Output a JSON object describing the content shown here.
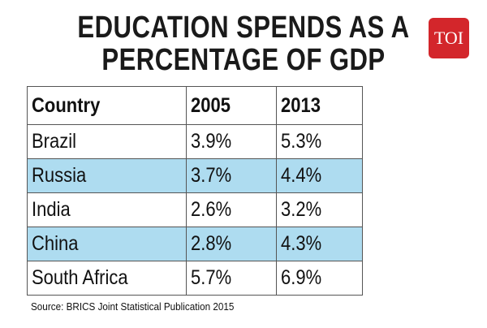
{
  "title_lines": [
    "EDUCATION SPENDS AS A",
    "PERCENTAGE OF GDP"
  ],
  "logo_text": "TOI",
  "colors": {
    "logo": "#d3262b",
    "row_highlight": "#aedcf0"
  },
  "chart_data": {
    "type": "table",
    "title": "EDUCATION SPENDS AS A PERCENTAGE OF GDP",
    "columns": [
      "Country",
      "2005",
      "2013"
    ],
    "rows": [
      [
        "Brazil",
        "3.9%",
        "5.3%"
      ],
      [
        "Russia",
        "3.7%",
        "4.4%"
      ],
      [
        "India",
        "2.6%",
        "3.2%"
      ],
      [
        "China",
        "2.8%",
        "4.3%"
      ],
      [
        "South Africa",
        "5.7%",
        "6.9%"
      ]
    ]
  },
  "source": "Source: BRICS Joint Statistical Publication 2015"
}
